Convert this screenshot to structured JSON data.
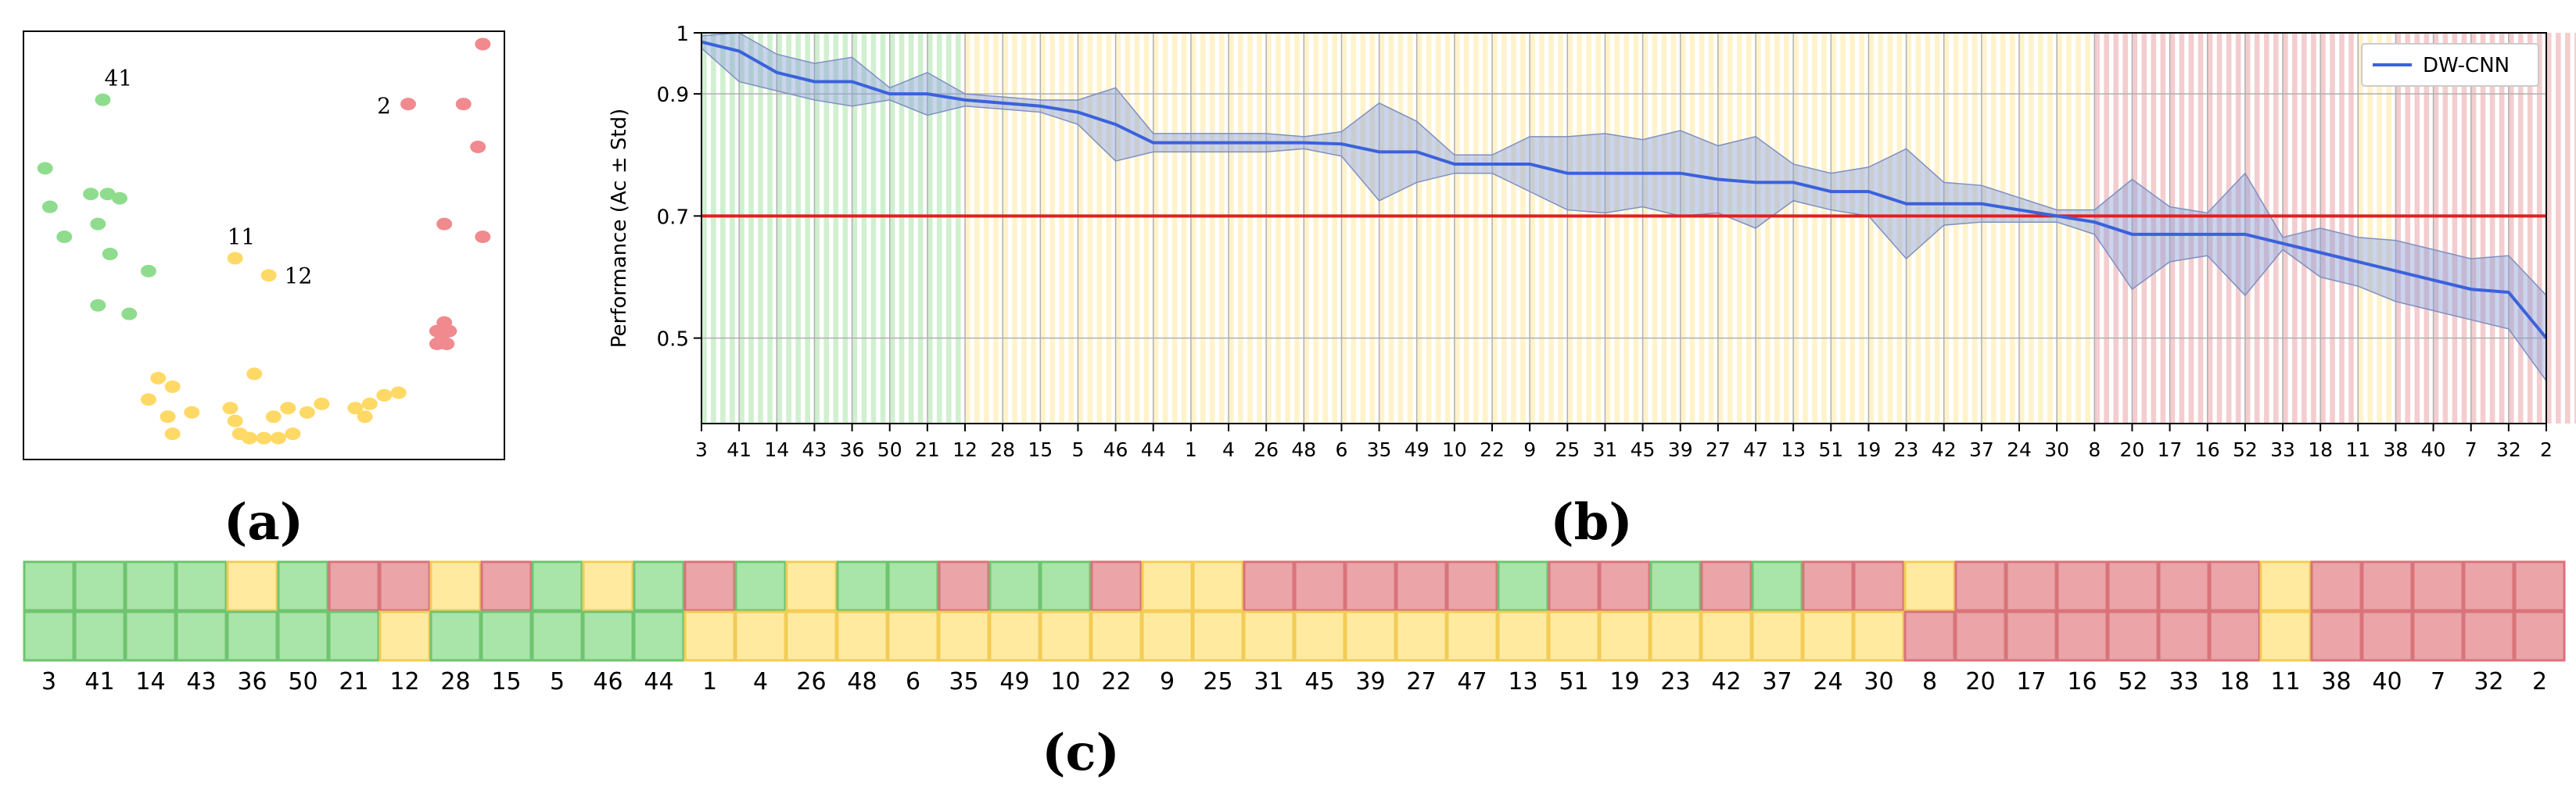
{
  "panels": {
    "a_label": "(a)",
    "b_label": "(b)",
    "c_label": "(c)"
  },
  "colors": {
    "green": "#a9e4a9",
    "yellow": "#ffeaa0",
    "red": "#eba4a8",
    "green_dot": "#8fdc8f",
    "yellow_dot": "#ffd966",
    "red_dot": "#f08a8e",
    "line": "#3a62dc",
    "threshold": "#e02020"
  },
  "chart_data": [
    {
      "type": "scatter",
      "panel": "a",
      "annotations": [
        "41",
        "2",
        "11",
        "12"
      ],
      "points": [
        {
          "x": 0.165,
          "y": 0.84,
          "group": "green",
          "label": "41"
        },
        {
          "x": 0.045,
          "y": 0.68,
          "group": "green"
        },
        {
          "x": 0.055,
          "y": 0.59,
          "group": "green"
        },
        {
          "x": 0.085,
          "y": 0.52,
          "group": "green"
        },
        {
          "x": 0.14,
          "y": 0.62,
          "group": "green"
        },
        {
          "x": 0.155,
          "y": 0.55,
          "group": "green"
        },
        {
          "x": 0.175,
          "y": 0.62,
          "group": "green"
        },
        {
          "x": 0.2,
          "y": 0.61,
          "group": "green"
        },
        {
          "x": 0.18,
          "y": 0.48,
          "group": "green"
        },
        {
          "x": 0.26,
          "y": 0.44,
          "group": "green"
        },
        {
          "x": 0.155,
          "y": 0.36,
          "group": "green"
        },
        {
          "x": 0.22,
          "y": 0.34,
          "group": "green"
        },
        {
          "x": 0.44,
          "y": 0.47,
          "group": "yellow",
          "label": "11"
        },
        {
          "x": 0.51,
          "y": 0.43,
          "group": "yellow",
          "label": "12"
        },
        {
          "x": 0.28,
          "y": 0.19,
          "group": "yellow"
        },
        {
          "x": 0.31,
          "y": 0.17,
          "group": "yellow"
        },
        {
          "x": 0.26,
          "y": 0.14,
          "group": "yellow"
        },
        {
          "x": 0.3,
          "y": 0.1,
          "group": "yellow"
        },
        {
          "x": 0.35,
          "y": 0.11,
          "group": "yellow"
        },
        {
          "x": 0.31,
          "y": 0.06,
          "group": "yellow"
        },
        {
          "x": 0.43,
          "y": 0.12,
          "group": "yellow"
        },
        {
          "x": 0.44,
          "y": 0.09,
          "group": "yellow"
        },
        {
          "x": 0.48,
          "y": 0.2,
          "group": "yellow"
        },
        {
          "x": 0.45,
          "y": 0.06,
          "group": "yellow"
        },
        {
          "x": 0.47,
          "y": 0.05,
          "group": "yellow"
        },
        {
          "x": 0.5,
          "y": 0.05,
          "group": "yellow"
        },
        {
          "x": 0.53,
          "y": 0.05,
          "group": "yellow"
        },
        {
          "x": 0.52,
          "y": 0.1,
          "group": "yellow"
        },
        {
          "x": 0.55,
          "y": 0.12,
          "group": "yellow"
        },
        {
          "x": 0.59,
          "y": 0.11,
          "group": "yellow"
        },
        {
          "x": 0.62,
          "y": 0.13,
          "group": "yellow"
        },
        {
          "x": 0.56,
          "y": 0.06,
          "group": "yellow"
        },
        {
          "x": 0.69,
          "y": 0.12,
          "group": "yellow"
        },
        {
          "x": 0.71,
          "y": 0.1,
          "group": "yellow"
        },
        {
          "x": 0.72,
          "y": 0.13,
          "group": "yellow"
        },
        {
          "x": 0.75,
          "y": 0.15,
          "group": "yellow"
        },
        {
          "x": 0.78,
          "y": 0.156,
          "group": "yellow"
        },
        {
          "x": 0.8,
          "y": 0.83,
          "group": "red",
          "label": "2"
        },
        {
          "x": 0.955,
          "y": 0.97,
          "group": "red"
        },
        {
          "x": 0.915,
          "y": 0.83,
          "group": "red"
        },
        {
          "x": 0.945,
          "y": 0.73,
          "group": "red"
        },
        {
          "x": 0.875,
          "y": 0.55,
          "group": "red"
        },
        {
          "x": 0.955,
          "y": 0.52,
          "group": "red"
        },
        {
          "x": 0.86,
          "y": 0.3,
          "group": "red"
        },
        {
          "x": 0.875,
          "y": 0.32,
          "group": "red"
        },
        {
          "x": 0.87,
          "y": 0.28,
          "group": "red"
        },
        {
          "x": 0.88,
          "y": 0.27,
          "group": "red"
        },
        {
          "x": 0.86,
          "y": 0.27,
          "group": "red"
        },
        {
          "x": 0.885,
          "y": 0.3,
          "group": "red"
        }
      ]
    },
    {
      "type": "line",
      "panel": "b",
      "xlabel": "",
      "ylabel": "Performance (Ac ± Std)",
      "ylim": [
        0.36,
        1.0
      ],
      "yticks": [
        0.5,
        0.7,
        0.9,
        1
      ],
      "ytick_labels": [
        "0.5",
        "0.7",
        "0.9",
        "1"
      ],
      "threshold": 0.7,
      "grid": true,
      "legend": "top-right",
      "categories": [
        "3",
        "41",
        "14",
        "43",
        "36",
        "50",
        "21",
        "12",
        "28",
        "15",
        "5",
        "46",
        "44",
        "1",
        "4",
        "26",
        "48",
        "6",
        "35",
        "49",
        "10",
        "22",
        "9",
        "25",
        "31",
        "45",
        "39",
        "27",
        "47",
        "13",
        "51",
        "19",
        "23",
        "42",
        "37",
        "24",
        "30",
        "8",
        "20",
        "17",
        "16",
        "52",
        "33",
        "18",
        "11",
        "38",
        "40",
        "7",
        "32",
        "2"
      ],
      "shading_groups": [
        "green",
        "green",
        "green",
        "green",
        "green",
        "green",
        "green",
        "yellow",
        "yellow",
        "yellow",
        "yellow",
        "yellow",
        "yellow",
        "yellow",
        "yellow",
        "yellow",
        "yellow",
        "yellow",
        "yellow",
        "yellow",
        "yellow",
        "yellow",
        "yellow",
        "yellow",
        "yellow",
        "yellow",
        "yellow",
        "yellow",
        "yellow",
        "yellow",
        "yellow",
        "yellow",
        "yellow",
        "yellow",
        "yellow",
        "yellow",
        "yellow",
        "red",
        "red",
        "red",
        "red",
        "red",
        "red",
        "red",
        "yellow",
        "red",
        "red",
        "red",
        "red",
        "red"
      ],
      "series": [
        {
          "name": "DW-CNN",
          "mean": [
            0.985,
            0.97,
            0.935,
            0.92,
            0.92,
            0.9,
            0.9,
            0.89,
            0.885,
            0.88,
            0.87,
            0.85,
            0.82,
            0.82,
            0.82,
            0.82,
            0.82,
            0.818,
            0.805,
            0.805,
            0.785,
            0.785,
            0.785,
            0.77,
            0.77,
            0.77,
            0.77,
            0.76,
            0.755,
            0.755,
            0.74,
            0.74,
            0.72,
            0.72,
            0.72,
            0.71,
            0.7,
            0.69,
            0.67,
            0.67,
            0.67,
            0.67,
            0.655,
            0.64,
            0.625,
            0.61,
            0.595,
            0.58,
            0.575,
            0.5
          ],
          "std": [
            0.01,
            0.05,
            0.03,
            0.03,
            0.04,
            0.01,
            0.035,
            0.01,
            0.01,
            0.01,
            0.02,
            0.06,
            0.015,
            0.015,
            0.015,
            0.015,
            0.01,
            0.02,
            0.08,
            0.05,
            0.015,
            0.015,
            0.045,
            0.06,
            0.065,
            0.055,
            0.07,
            0.055,
            0.075,
            0.03,
            0.03,
            0.04,
            0.09,
            0.035,
            0.03,
            0.02,
            0.01,
            0.02,
            0.09,
            0.045,
            0.035,
            0.1,
            0.01,
            0.04,
            0.04,
            0.05,
            0.05,
            0.05,
            0.06,
            0.07
          ]
        }
      ]
    },
    {
      "type": "heatmap",
      "panel": "c",
      "columns": [
        "3",
        "41",
        "14",
        "43",
        "36",
        "50",
        "21",
        "12",
        "28",
        "15",
        "5",
        "46",
        "44",
        "1",
        "4",
        "26",
        "48",
        "6",
        "35",
        "49",
        "10",
        "22",
        "9",
        "25",
        "31",
        "45",
        "39",
        "27",
        "47",
        "13",
        "51",
        "19",
        "23",
        "42",
        "37",
        "24",
        "30",
        "8",
        "20",
        "17",
        "16",
        "52",
        "33",
        "18",
        "11",
        "38",
        "40",
        "7",
        "32",
        "2"
      ],
      "rows": [
        [
          "green",
          "green",
          "green",
          "green",
          "yellow",
          "green",
          "red",
          "red",
          "yellow",
          "red",
          "green",
          "yellow",
          "green",
          "red",
          "green",
          "yellow",
          "green",
          "green",
          "red",
          "green",
          "green",
          "red",
          "yellow",
          "yellow",
          "red",
          "red",
          "red",
          "red",
          "red",
          "green",
          "red",
          "red",
          "green",
          "red",
          "green",
          "red",
          "red",
          "yellow",
          "red",
          "red",
          "red",
          "red",
          "red",
          "red",
          "yellow",
          "red",
          "red",
          "red",
          "red",
          "red"
        ],
        [
          "green",
          "green",
          "green",
          "green",
          "green",
          "green",
          "green",
          "yellow",
          "green",
          "green",
          "green",
          "green",
          "green",
          "yellow",
          "yellow",
          "yellow",
          "yellow",
          "yellow",
          "yellow",
          "yellow",
          "yellow",
          "yellow",
          "yellow",
          "yellow",
          "yellow",
          "yellow",
          "yellow",
          "yellow",
          "yellow",
          "yellow",
          "yellow",
          "yellow",
          "yellow",
          "yellow",
          "yellow",
          "yellow",
          "yellow",
          "red",
          "red",
          "red",
          "red",
          "red",
          "red",
          "red",
          "yellow",
          "red",
          "red",
          "red",
          "red",
          "red"
        ]
      ]
    }
  ]
}
